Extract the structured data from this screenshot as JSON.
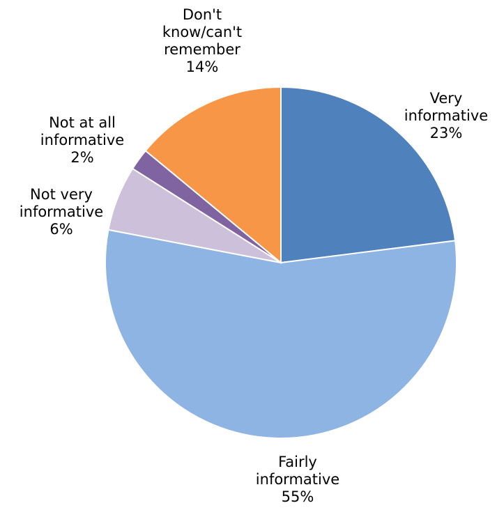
{
  "chart_data": {
    "type": "pie",
    "start_angle_deg": 0,
    "direction": "clockwise",
    "slices": [
      {
        "label_lines": [
          "Very",
          "informative"
        ],
        "value_label": "23%",
        "value": 23,
        "color": "#4f81bd"
      },
      {
        "label_lines": [
          "Fairly",
          "informative"
        ],
        "value_label": "55%",
        "value": 55,
        "color": "#8eb4e3"
      },
      {
        "label_lines": [
          "Not very",
          "informative"
        ],
        "value_label": "6%",
        "value": 6,
        "color": "#ccc0da"
      },
      {
        "label_lines": [
          "Not at all",
          "informative"
        ],
        "value_label": "2%",
        "value": 2,
        "color": "#8064a2"
      },
      {
        "label_lines": [
          "Don't",
          "know/can't",
          "remember"
        ],
        "value_label": "14%",
        "value": 14,
        "color": "#f79646"
      }
    ]
  }
}
